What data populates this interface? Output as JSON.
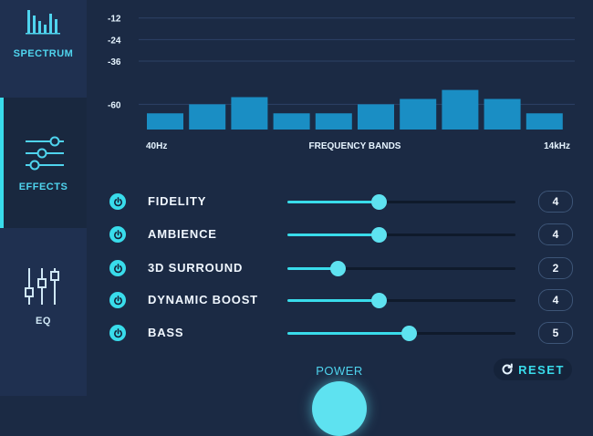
{
  "sidebar": {
    "items": [
      {
        "label": "SPECTRUM",
        "icon": "spectrum-bars-icon"
      },
      {
        "label": "EFFECTS",
        "icon": "sliders-horizontal-icon",
        "active": true
      },
      {
        "label": "EQ",
        "icon": "sliders-vertical-icon"
      }
    ]
  },
  "chart_data": {
    "type": "bar",
    "y_ticks": [
      "-12",
      "-24",
      "-36",
      "-60"
    ],
    "x_start_label": "40Hz",
    "xlabel": "FREQUENCY BANDS",
    "x_end_label": "14kHz",
    "values": [
      -65,
      -60,
      -56,
      -65,
      -65,
      -60,
      -57,
      -52,
      -57,
      -65
    ],
    "ylim": [
      -74,
      -2
    ],
    "bar_color": "#1a8ec4",
    "grid": true
  },
  "effects": [
    {
      "label": "FIDELITY",
      "value": "4",
      "level": 0.4
    },
    {
      "label": "AMBIENCE",
      "value": "4",
      "level": 0.4
    },
    {
      "label": "3D SURROUND",
      "value": "2",
      "level": 0.22
    },
    {
      "label": "DYNAMIC BOOST",
      "value": "4",
      "level": 0.4
    },
    {
      "label": "BASS",
      "value": "5",
      "level": 0.53
    }
  ],
  "power": {
    "label": "POWER"
  },
  "reset": {
    "label": "RESET",
    "icon": "refresh-icon"
  },
  "colors": {
    "accent": "#39dceb",
    "background": "#1b2a44",
    "sidebar": "#1f3050"
  }
}
